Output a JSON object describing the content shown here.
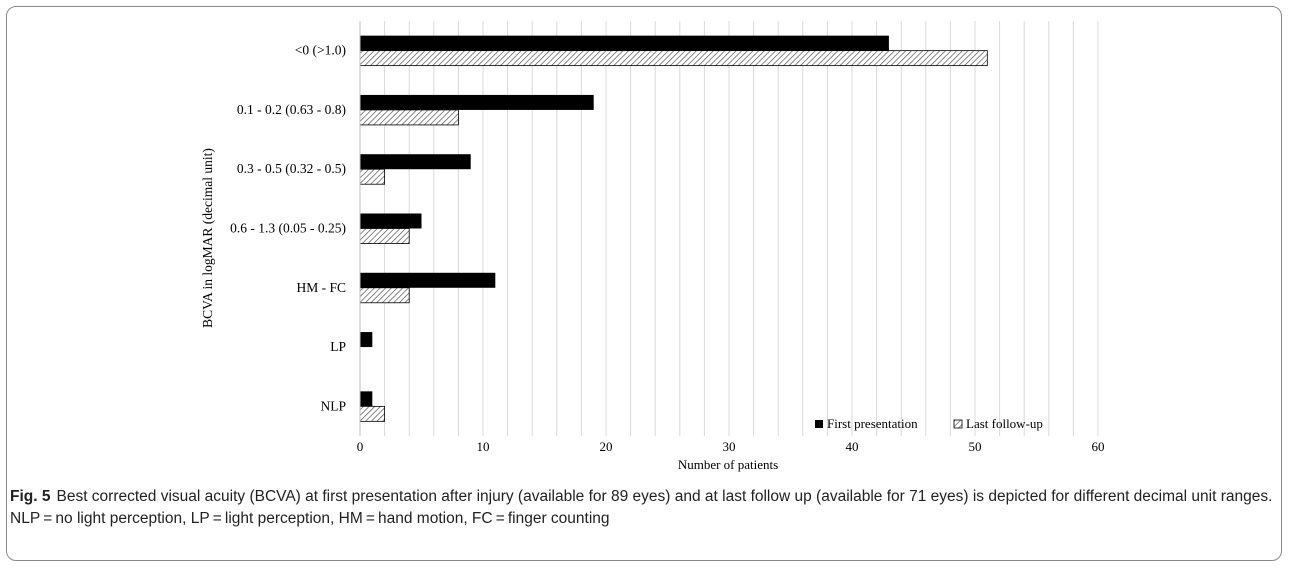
{
  "colors": {
    "first": "#000000",
    "last_hatch": "#555555",
    "grid": "#d9d9d9",
    "axis": "#bfbfbf"
  },
  "caption": {
    "label": "Fig. 5",
    "text": "Best corrected visual acuity (BCVA) at first presentation after injury (available for 89 eyes) and at last follow up (available for 71 eyes) is depicted for different decimal unit ranges. NLP = no light perception, LP = light perception, HM = hand motion, FC = finger counting"
  },
  "chart_data": {
    "type": "bar",
    "orientation": "horizontal",
    "categories": [
      "<0 (>1.0)",
      "0.1 - 0.2 (0.63 - 0.8)",
      "0.3 - 0.5 (0.32 - 0.5)",
      "0.6 - 1.3 (0.05 - 0.25)",
      "HM - FC",
      "LP",
      "NLP"
    ],
    "series": [
      {
        "name": "First presentation",
        "values": [
          43,
          19,
          9,
          5,
          11,
          1,
          1
        ],
        "fill": "solid"
      },
      {
        "name": "Last follow-up",
        "values": [
          51,
          8,
          2,
          4,
          4,
          0,
          2
        ],
        "fill": "hatched"
      }
    ],
    "xlabel": "Number of patients",
    "ylabel": "BCVA in logMAR (decimal unit)",
    "xlim": [
      0,
      60
    ],
    "xticks": [
      0,
      10,
      20,
      30,
      40,
      50,
      60
    ],
    "minor_grid_step": 2,
    "grid": true,
    "legend": "bottom-right"
  }
}
